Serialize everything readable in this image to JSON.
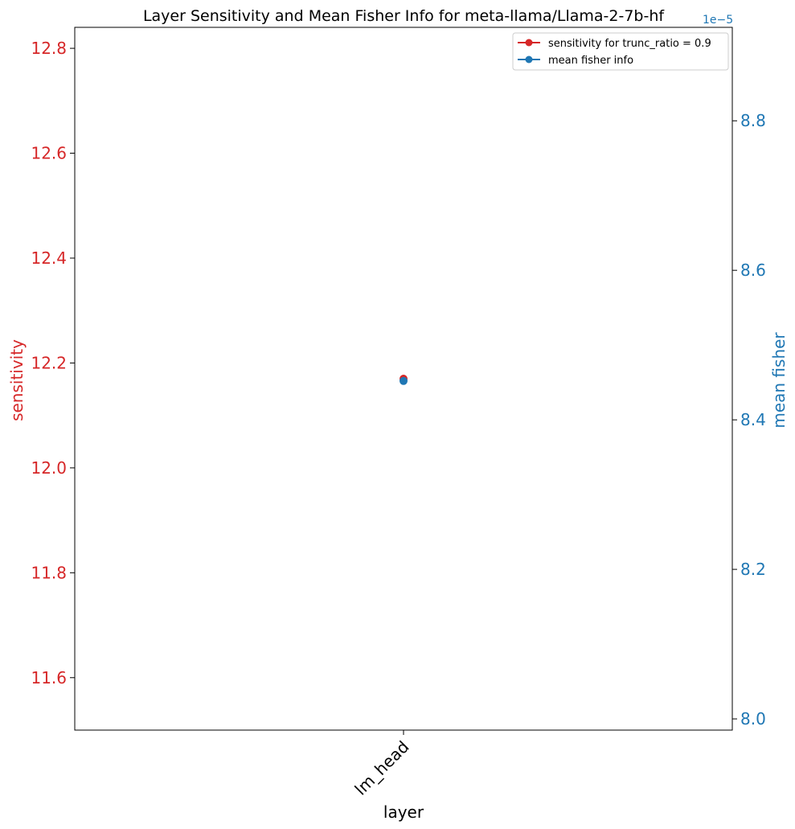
{
  "chart_data": {
    "type": "line",
    "title": "Layer Sensitivity and Mean Fisher Info for meta-llama/Llama-2-7b-hf",
    "xlabel": "layer",
    "categories": [
      "lm_head"
    ],
    "y_left": {
      "label": "sensitivity",
      "color": "#d62728",
      "ylim": [
        11.5,
        12.84
      ],
      "ticks": [
        11.6,
        11.8,
        12.0,
        12.2,
        12.4,
        12.6,
        12.8
      ],
      "tick_labels": [
        "11.6",
        "11.8",
        "12.0",
        "12.2",
        "12.4",
        "12.6",
        "12.8"
      ]
    },
    "y_right": {
      "label": "mean fisher",
      "color": "#1f77b4",
      "offset_text": "1e−5",
      "ylim": [
        7.985,
        8.925
      ],
      "ticks": [
        8.0,
        8.2,
        8.4,
        8.6,
        8.8
      ],
      "tick_labels": [
        "8.0",
        "8.2",
        "8.4",
        "8.6",
        "8.8"
      ]
    },
    "series": [
      {
        "name": "sensitivity for trunc_ratio = 0.9",
        "axis": "left",
        "color": "#d62728",
        "values": [
          12.17
        ]
      },
      {
        "name": "mean fisher info",
        "axis": "right",
        "color": "#1f77b4",
        "values": [
          8.452
        ]
      }
    ],
    "legend_position": "top-right",
    "grid": false
  }
}
